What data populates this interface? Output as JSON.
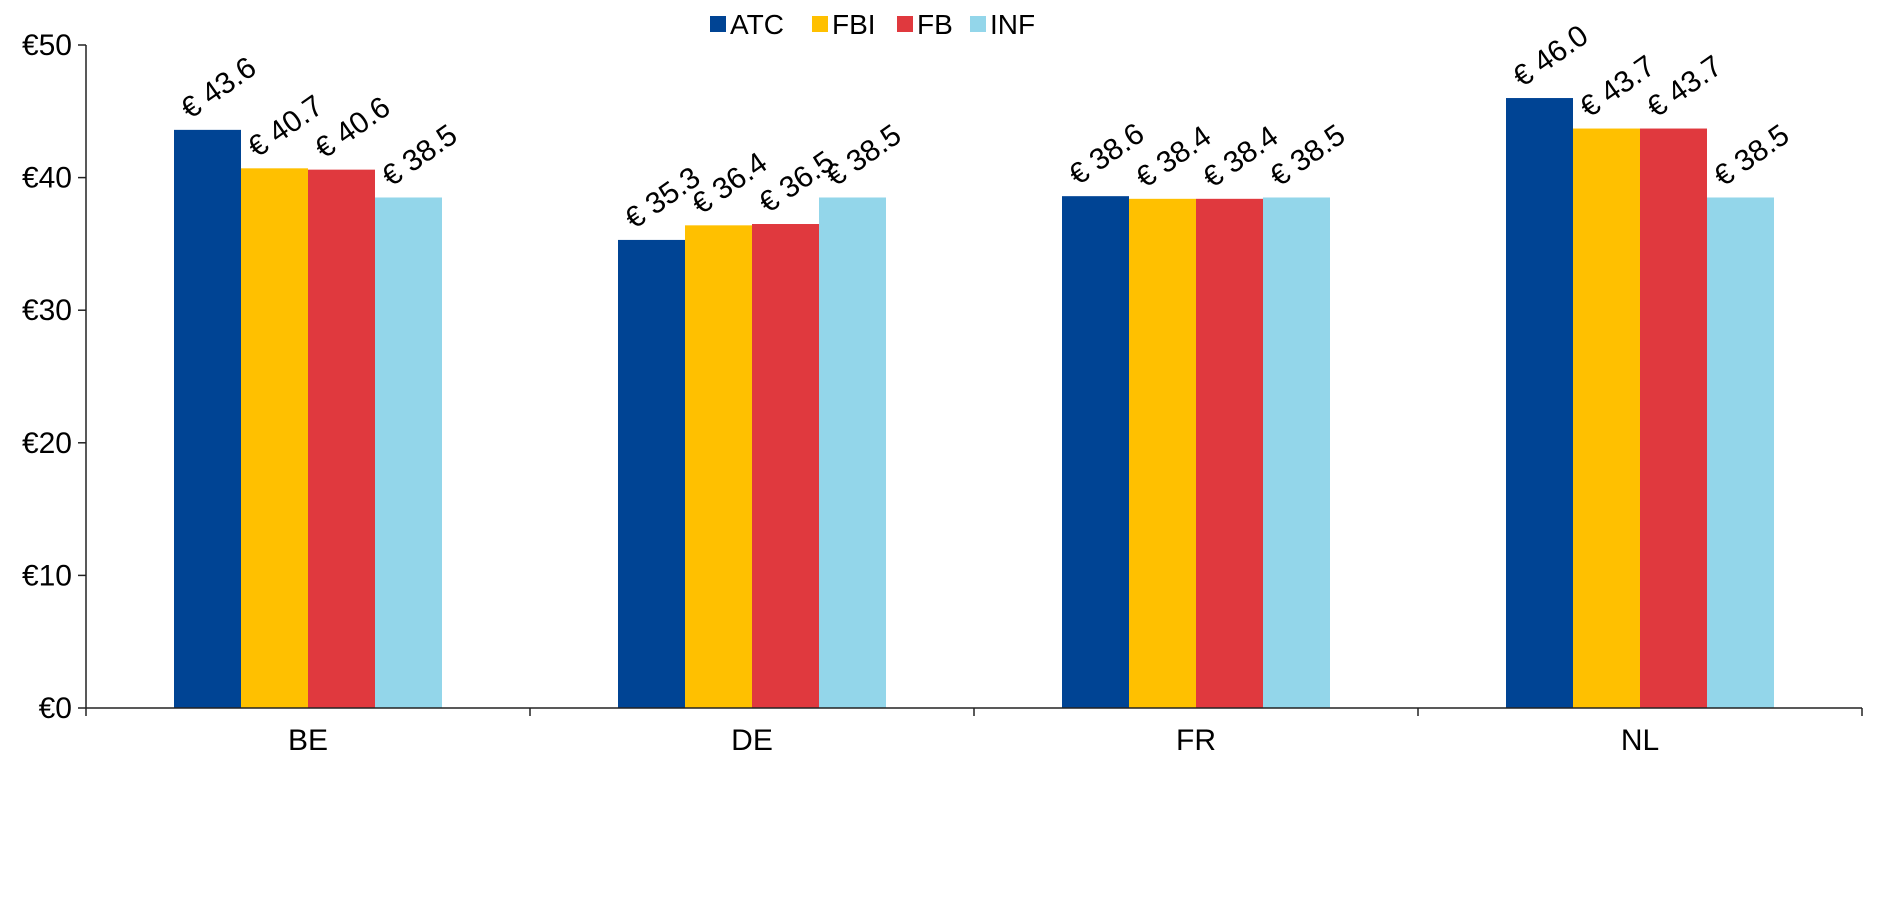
{
  "chart_data": {
    "type": "bar",
    "categories": [
      "BE",
      "DE",
      "FR",
      "NL"
    ],
    "series": [
      {
        "name": "ATC",
        "color": "#004494",
        "values": [
          43.6,
          35.3,
          38.6,
          46.0
        ],
        "labels": [
          "€ 43.6",
          "€ 35.3",
          "€ 38.6",
          "€ 46.0"
        ]
      },
      {
        "name": "FBI",
        "color": "#FFC000",
        "values": [
          40.7,
          36.4,
          38.4,
          43.7
        ],
        "labels": [
          "€ 40.7",
          "€ 36.4",
          "€ 38.4",
          "€ 43.7"
        ]
      },
      {
        "name": "FB",
        "color": "#E0393E",
        "values": [
          40.6,
          36.5,
          38.4,
          43.7
        ],
        "labels": [
          "€ 40.6",
          "€ 36.5",
          "€ 38.4",
          "€ 43.7"
        ]
      },
      {
        "name": "INF",
        "color": "#93D6EA",
        "values": [
          38.5,
          38.5,
          38.5,
          38.5
        ],
        "labels": [
          "€ 38.5",
          "€ 38.5",
          "€ 38.5",
          "€ 38.5"
        ]
      }
    ],
    "yticks": [
      0,
      10,
      20,
      30,
      40,
      50
    ],
    "ytick_labels": [
      "€0",
      "€10",
      "€20",
      "€30",
      "€40",
      "€50"
    ],
    "ylim": [
      0,
      50
    ],
    "legend_position": "top-center",
    "grid": false,
    "data_labels_rotated": true
  }
}
